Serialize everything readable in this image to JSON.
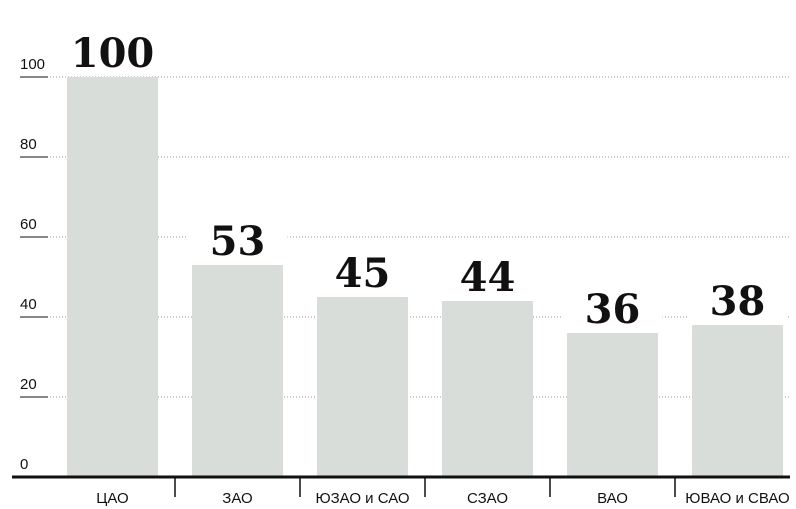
{
  "chart_data": {
    "type": "bar",
    "title": "",
    "xlabel": "",
    "ylabel": "",
    "categories": [
      "ЦАО",
      "ЗАО",
      "ЮЗАО и САО",
      "СЗАО",
      "ВАО",
      "ЮВАО и СВАО"
    ],
    "values": [
      100,
      53,
      45,
      44,
      36,
      38
    ],
    "value_labels": [
      "100",
      "53",
      "45",
      "44",
      "36",
      "38"
    ],
    "ylim": [
      0,
      100
    ],
    "yticks": [
      0,
      20,
      40,
      60,
      80,
      100
    ],
    "ytick_labels": [
      "0",
      "20",
      "40",
      "60",
      "80",
      "100"
    ],
    "grid": true,
    "legend": "none",
    "colors": {
      "bar": "#d8ddda",
      "grid": "#9a9a9a",
      "axis": "#111111",
      "text": "#111111"
    }
  }
}
